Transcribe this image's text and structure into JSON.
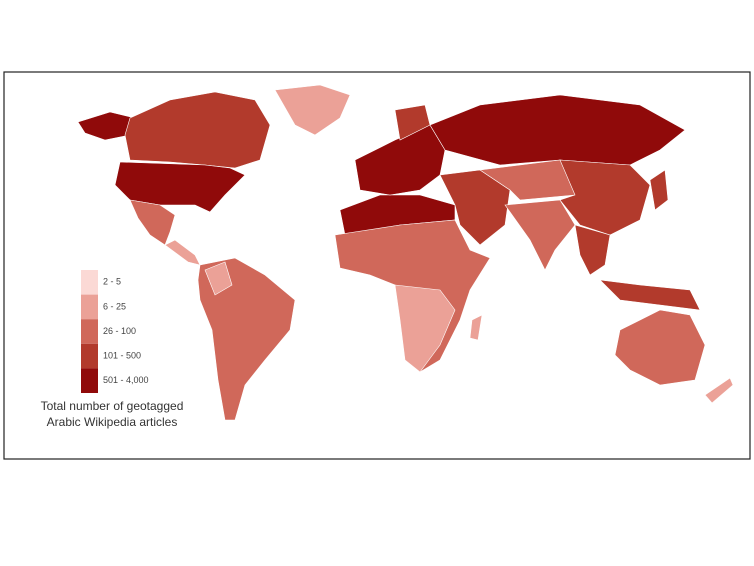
{
  "legend": {
    "items": [
      {
        "label": "2 - 5",
        "color": "#fbd9d5"
      },
      {
        "label": "6 - 25",
        "color": "#eba197"
      },
      {
        "label": "26 - 100",
        "color": "#d0685a"
      },
      {
        "label": "101 - 500",
        "color": "#b23a2c"
      },
      {
        "label": "501 - 4,000",
        "color": "#900a0a"
      }
    ]
  },
  "caption": [
    "Total number of geotagged",
    "Arabic Wikipedia articles"
  ]
}
